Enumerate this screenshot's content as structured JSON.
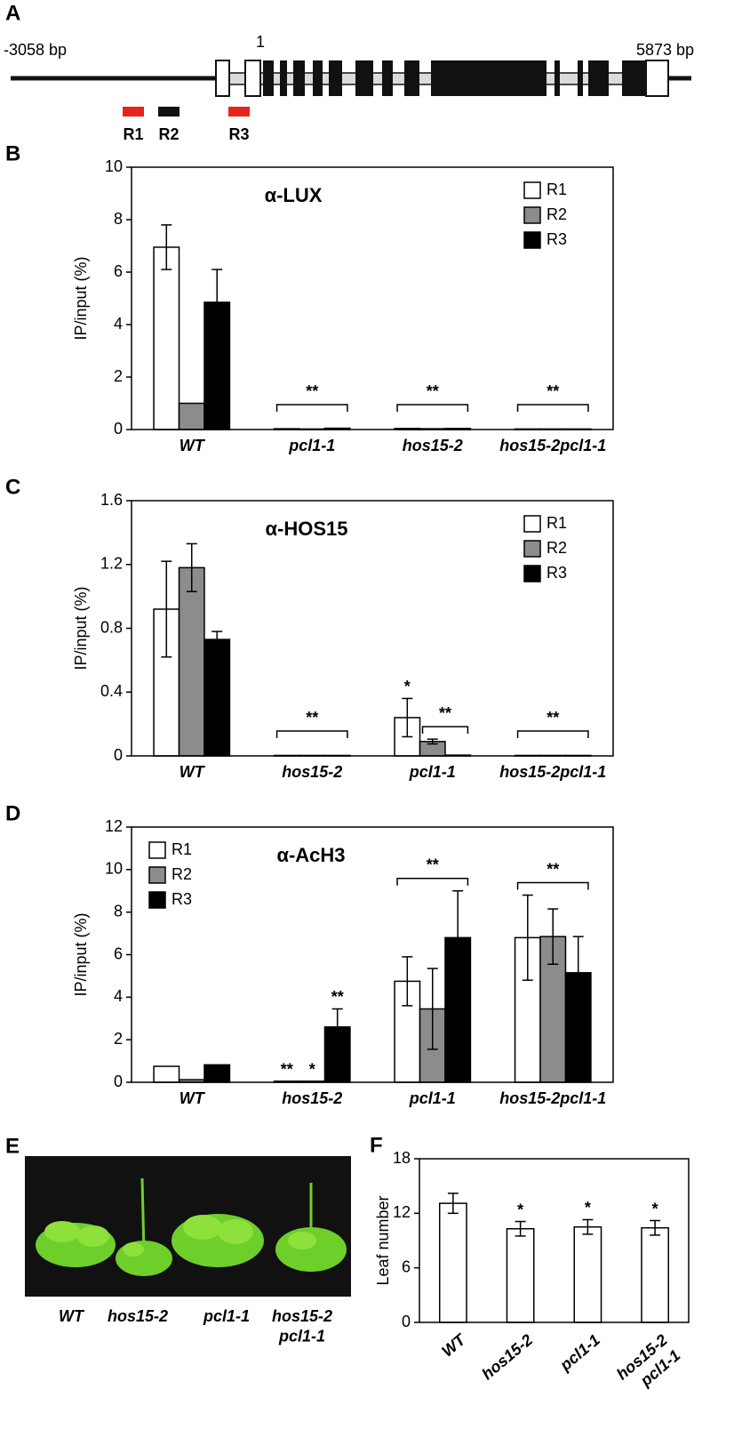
{
  "gene_diagram": {
    "panel": "A",
    "left_label": "-3058 bp",
    "start_label": "1",
    "right_label": "5873 bp",
    "regions": [
      {
        "name": "R1",
        "color": "#e8231c"
      },
      {
        "name": "R2",
        "color": "#111111"
      },
      {
        "name": "R3",
        "color": "#e8231c"
      }
    ]
  },
  "photo": {
    "panel": "E",
    "labels": [
      "WT",
      "hos15-2",
      "pcl1-1",
      "hos15-2 pcl1-1"
    ]
  },
  "chart_data": [
    {
      "type": "bar",
      "panel": "B",
      "title": "α-LUX",
      "y_label": "IP/input (%)",
      "categories": [
        "WT",
        "pcl1-1",
        "hos15-2",
        "hos15-2pcl1-1"
      ],
      "series": [
        {
          "name": "R1",
          "color": "#ffffff",
          "values": [
            6.95,
            0.03,
            0.04,
            0.02
          ],
          "errors": [
            0.85,
            null,
            null,
            null
          ]
        },
        {
          "name": "R2",
          "color": "#8c8c8c",
          "values": [
            1.0,
            0.02,
            0.03,
            0.02
          ],
          "errors": [
            null,
            null,
            null,
            null
          ]
        },
        {
          "name": "R3",
          "color": "#000000",
          "values": [
            4.85,
            0.05,
            0.04,
            0.02
          ],
          "errors": [
            1.25,
            null,
            null,
            null
          ]
        }
      ],
      "annotations": [
        {
          "text": "**",
          "x": "pcl1-1"
        },
        {
          "text": "**",
          "x": "hos15-2"
        },
        {
          "text": "**",
          "x": "hos15-2pcl1-1"
        }
      ],
      "ylim": [
        0,
        10
      ],
      "yticks": [
        0,
        2,
        4,
        6,
        8,
        10
      ],
      "legend": "upper right"
    },
    {
      "type": "bar",
      "panel": "C",
      "title": "α-HOS15",
      "y_label": "IP/input (%)",
      "categories": [
        "WT",
        "hos15-2",
        "pcl1-1",
        "hos15-2pcl1-1"
      ],
      "series": [
        {
          "name": "R1",
          "color": "#ffffff",
          "values": [
            0.92,
            0.003,
            0.24,
            0.003
          ],
          "errors": [
            0.3,
            null,
            0.12,
            null
          ]
        },
        {
          "name": "R2",
          "color": "#8c8c8c",
          "values": [
            1.18,
            0.003,
            0.09,
            0.003
          ],
          "errors": [
            0.15,
            null,
            0.015,
            null
          ]
        },
        {
          "name": "R3",
          "color": "#000000",
          "values": [
            0.73,
            0.003,
            0.005,
            0.003
          ],
          "errors": [
            0.05,
            null,
            null,
            null
          ]
        }
      ],
      "annotations": [
        {
          "text": "**",
          "x": "hos15-2"
        },
        {
          "text": "*",
          "x": "pcl1-1",
          "series": [
            "R1"
          ]
        },
        {
          "text": "**",
          "x": "pcl1-1",
          "series": [
            "R2",
            "R3"
          ]
        },
        {
          "text": "**",
          "x": "hos15-2pcl1-1"
        }
      ],
      "ylim": [
        0,
        1.6
      ],
      "yticks": [
        0,
        0.4,
        0.8,
        1.2,
        1.6
      ],
      "legend": "upper right"
    },
    {
      "type": "bar",
      "panel": "D",
      "title": "α-AcH3",
      "y_label": "IP/input (%)",
      "categories": [
        "WT",
        "hos15-2",
        "pcl1-1",
        "hos15-2pcl1-1"
      ],
      "series": [
        {
          "name": "R1",
          "color": "#ffffff",
          "values": [
            0.75,
            0.05,
            4.75,
            6.8
          ],
          "errors": [
            null,
            null,
            1.15,
            2.0
          ]
        },
        {
          "name": "R2",
          "color": "#8c8c8c",
          "values": [
            0.12,
            0.05,
            3.45,
            6.85
          ],
          "errors": [
            null,
            null,
            1.9,
            1.3
          ]
        },
        {
          "name": "R3",
          "color": "#000000",
          "values": [
            0.82,
            2.6,
            6.8,
            5.15
          ],
          "errors": [
            null,
            0.85,
            2.2,
            1.7
          ]
        }
      ],
      "annotations": [
        {
          "text": "**",
          "x": "hos15-2",
          "series": [
            "R1"
          ]
        },
        {
          "text": "*",
          "x": "hos15-2",
          "series": [
            "R2"
          ]
        },
        {
          "text": "**",
          "x": "hos15-2",
          "series": [
            "R3"
          ]
        },
        {
          "text": "**",
          "x": "pcl1-1"
        },
        {
          "text": "**",
          "x": "hos15-2pcl1-1"
        }
      ],
      "ylim": [
        0,
        12
      ],
      "yticks": [
        0,
        2,
        4,
        6,
        8,
        10,
        12
      ],
      "legend": "upper left"
    },
    {
      "type": "bar",
      "panel": "F",
      "y_label": "Leaf number",
      "categories": [
        "WT",
        "hos15-2",
        "pcl1-1",
        "hos15-2 pcl1-1"
      ],
      "series": [
        {
          "color": "#ffffff",
          "values": [
            13.1,
            10.3,
            10.5,
            10.4
          ],
          "errors": [
            1.1,
            0.8,
            0.8,
            0.8
          ]
        }
      ],
      "annotations": [
        {
          "text": "*",
          "x": "hos15-2"
        },
        {
          "text": "*",
          "x": "pcl1-1"
        },
        {
          "text": "*",
          "x": "hos15-2 pcl1-1"
        }
      ],
      "ylim": [
        0,
        18
      ],
      "yticks": [
        0,
        6,
        12,
        18
      ]
    }
  ]
}
